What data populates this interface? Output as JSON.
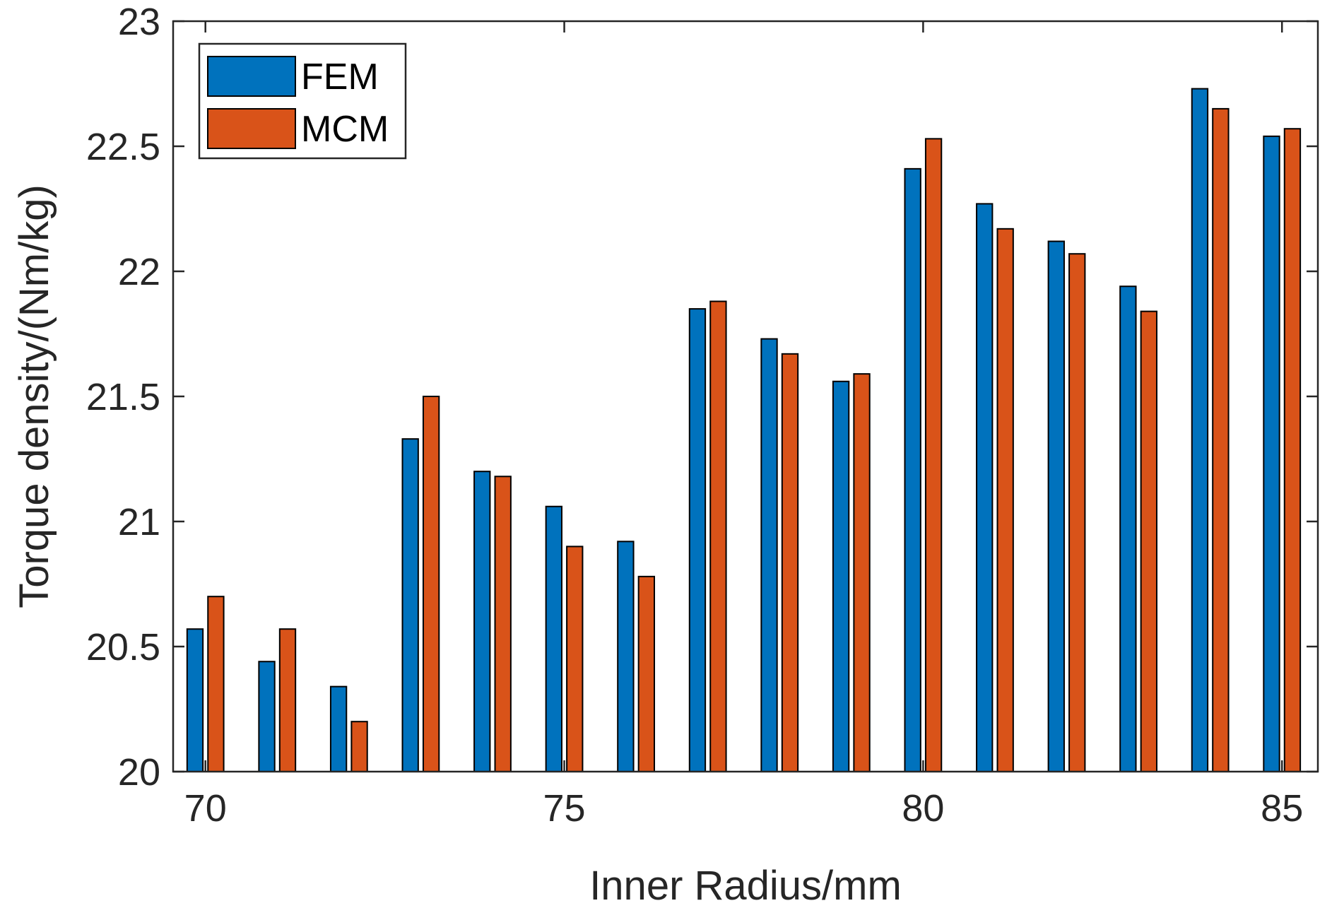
{
  "chart_data": {
    "type": "bar",
    "title": "",
    "xlabel": "Inner Radius/mm",
    "ylabel": "Torque density/(Nm/kg)",
    "x": [
      70,
      71,
      72,
      73,
      74,
      75,
      76,
      77,
      78,
      79,
      80,
      81,
      82,
      83,
      84,
      85
    ],
    "xlim": [
      69.55,
      85.5
    ],
    "ylim": [
      20,
      23
    ],
    "xticks": [
      70,
      75,
      80,
      85
    ],
    "xtick_labels": [
      "70",
      "75",
      "80",
      "85"
    ],
    "yticks": [
      20,
      20.5,
      21,
      21.5,
      22,
      22.5,
      23
    ],
    "ytick_labels": [
      "20",
      "20.5",
      "21",
      "21.5",
      "22",
      "22.5",
      "23"
    ],
    "grid": false,
    "legend_position": "top-left",
    "series": [
      {
        "name": "FEM",
        "color": "#0072BD",
        "values": [
          20.57,
          20.44,
          20.34,
          21.33,
          21.2,
          21.06,
          20.92,
          21.85,
          21.73,
          21.56,
          22.41,
          22.27,
          22.12,
          21.94,
          22.73,
          22.54
        ]
      },
      {
        "name": "MCM",
        "color": "#D95319",
        "values": [
          20.7,
          20.57,
          20.2,
          21.5,
          21.18,
          20.9,
          20.78,
          21.88,
          21.67,
          21.59,
          22.53,
          22.17,
          22.07,
          21.84,
          22.65,
          22.57
        ]
      }
    ]
  }
}
